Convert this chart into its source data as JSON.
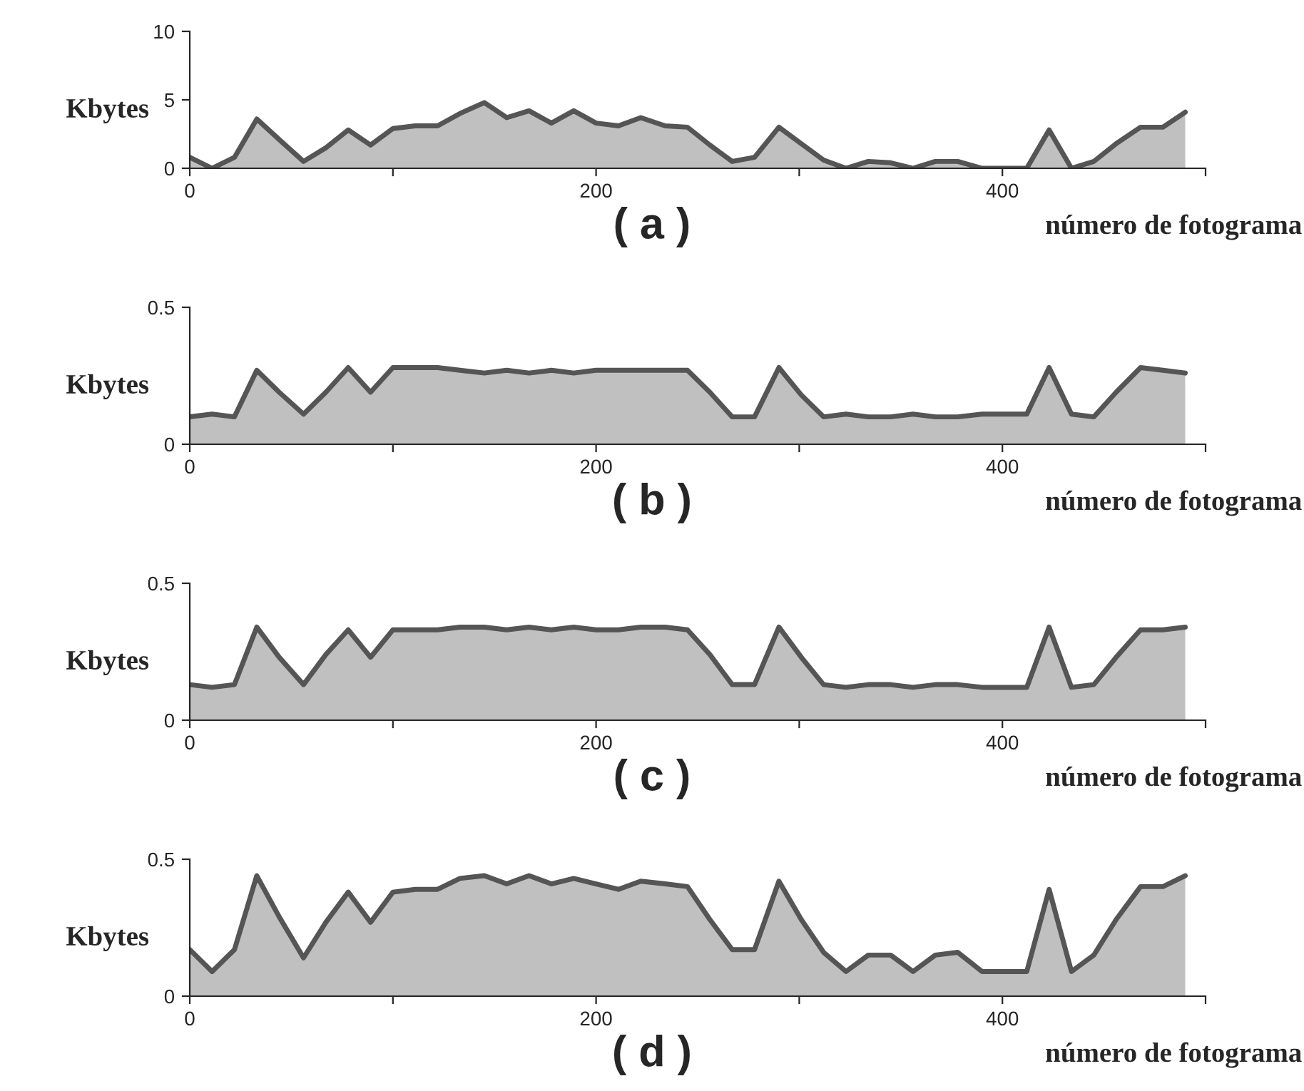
{
  "chart_data": [
    {
      "type": "area",
      "title": "( a )",
      "xlabel": "número de fotograma",
      "ylabel": "Kbytes",
      "x": [
        0,
        11,
        22,
        33,
        44,
        56,
        67,
        78,
        89,
        100,
        111,
        122,
        133,
        145,
        156,
        167,
        178,
        189,
        200,
        211,
        222,
        234,
        245,
        256,
        267,
        278,
        290,
        301,
        312,
        323,
        334,
        345,
        356,
        367,
        378,
        390,
        401,
        412,
        423,
        434,
        445,
        456,
        468,
        479,
        490
      ],
      "series": [
        {
          "color": "#c0c0c0",
          "values": [
            0.8,
            0,
            0.8,
            3.6,
            2.1,
            0.5,
            1.5,
            2.8,
            1.7,
            2.9,
            3.1,
            3.1,
            4.0,
            4.8,
            3.7,
            4.2,
            3.3,
            4.2,
            3.3,
            3.1,
            3.7,
            3.1,
            3.0,
            1.7,
            0.5,
            0.8,
            3.0,
            1.8,
            0.6,
            0,
            0.5,
            0.4,
            0,
            0.5,
            0.5,
            0,
            0,
            0,
            2.8,
            0,
            0.5,
            1.8,
            3.0,
            3.0,
            4.1
          ]
        }
      ],
      "xlim": [
        0,
        500
      ],
      "xticks": [
        0,
        {
          "value": 100,
          "label": null
        },
        200,
        {
          "value": 300,
          "label": null
        },
        400,
        {
          "value": 500,
          "label": null
        }
      ],
      "ylim": [
        0,
        10
      ],
      "yticks": [
        0,
        5,
        10
      ],
      "grid": false,
      "legend": false
    },
    {
      "type": "area",
      "title": "( b )",
      "xlabel": "número de fotograma",
      "ylabel": "Kbytes",
      "x": [
        0,
        11,
        22,
        33,
        44,
        56,
        67,
        78,
        89,
        100,
        111,
        122,
        133,
        145,
        156,
        167,
        178,
        189,
        200,
        211,
        222,
        234,
        245,
        256,
        267,
        278,
        290,
        301,
        312,
        323,
        334,
        345,
        356,
        367,
        378,
        390,
        401,
        412,
        423,
        434,
        445,
        456,
        468,
        479,
        490
      ],
      "series": [
        {
          "color": "#c0c0c0",
          "values": [
            0.1,
            0.11,
            0.1,
            0.27,
            0.19,
            0.11,
            0.19,
            0.28,
            0.19,
            0.28,
            0.28,
            0.28,
            0.27,
            0.26,
            0.27,
            0.26,
            0.27,
            0.26,
            0.27,
            0.27,
            0.27,
            0.27,
            0.27,
            0.19,
            0.1,
            0.1,
            0.28,
            0.18,
            0.1,
            0.11,
            0.1,
            0.1,
            0.11,
            0.1,
            0.1,
            0.11,
            0.11,
            0.11,
            0.28,
            0.11,
            0.1,
            0.19,
            0.28,
            0.27,
            0.26
          ]
        }
      ],
      "xlim": [
        0,
        500
      ],
      "xticks": [
        0,
        {
          "value": 100,
          "label": null
        },
        200,
        {
          "value": 300,
          "label": null
        },
        400,
        {
          "value": 500,
          "label": null
        }
      ],
      "ylim": [
        0,
        0.5
      ],
      "yticks": [
        0,
        0.5
      ],
      "grid": false,
      "legend": false
    },
    {
      "type": "area",
      "title": "( c )",
      "xlabel": "número de fotograma",
      "ylabel": "Kbytes",
      "x": [
        0,
        11,
        22,
        33,
        44,
        56,
        67,
        78,
        89,
        100,
        111,
        122,
        133,
        145,
        156,
        167,
        178,
        189,
        200,
        211,
        222,
        234,
        245,
        256,
        267,
        278,
        290,
        301,
        312,
        323,
        334,
        345,
        356,
        367,
        378,
        390,
        401,
        412,
        423,
        434,
        445,
        456,
        468,
        479,
        490
      ],
      "series": [
        {
          "color": "#c0c0c0",
          "values": [
            0.13,
            0.12,
            0.13,
            0.34,
            0.23,
            0.13,
            0.24,
            0.33,
            0.23,
            0.33,
            0.33,
            0.33,
            0.34,
            0.34,
            0.33,
            0.34,
            0.33,
            0.34,
            0.33,
            0.33,
            0.34,
            0.34,
            0.33,
            0.24,
            0.13,
            0.13,
            0.34,
            0.23,
            0.13,
            0.12,
            0.13,
            0.13,
            0.12,
            0.13,
            0.13,
            0.12,
            0.12,
            0.12,
            0.34,
            0.12,
            0.13,
            0.23,
            0.33,
            0.33,
            0.34
          ]
        }
      ],
      "xlim": [
        0,
        500
      ],
      "xticks": [
        0,
        {
          "value": 100,
          "label": null
        },
        200,
        {
          "value": 300,
          "label": null
        },
        400,
        {
          "value": 500,
          "label": null
        }
      ],
      "ylim": [
        0,
        0.5
      ],
      "yticks": [
        0,
        0.5
      ],
      "grid": false,
      "legend": false
    },
    {
      "type": "area",
      "title": "( d )",
      "xlabel": "número de fotograma",
      "ylabel": "Kbytes",
      "x": [
        0,
        11,
        22,
        33,
        44,
        56,
        67,
        78,
        89,
        100,
        111,
        122,
        133,
        145,
        156,
        167,
        178,
        189,
        200,
        211,
        222,
        234,
        245,
        256,
        267,
        278,
        290,
        301,
        312,
        323,
        334,
        345,
        356,
        367,
        378,
        390,
        401,
        412,
        423,
        434,
        445,
        456,
        468,
        479,
        490
      ],
      "series": [
        {
          "color": "#c0c0c0",
          "values": [
            0.17,
            0.09,
            0.17,
            0.44,
            0.29,
            0.14,
            0.27,
            0.38,
            0.27,
            0.38,
            0.39,
            0.39,
            0.43,
            0.44,
            0.41,
            0.44,
            0.41,
            0.43,
            0.41,
            0.39,
            0.42,
            0.41,
            0.4,
            0.28,
            0.17,
            0.17,
            0.42,
            0.28,
            0.16,
            0.09,
            0.15,
            0.15,
            0.09,
            0.15,
            0.16,
            0.09,
            0.09,
            0.09,
            0.39,
            0.09,
            0.15,
            0.28,
            0.4,
            0.4,
            0.44
          ]
        }
      ],
      "xlim": [
        0,
        500
      ],
      "xticks": [
        0,
        {
          "value": 100,
          "label": null
        },
        200,
        {
          "value": 300,
          "label": null
        },
        400,
        {
          "value": 500,
          "label": null
        }
      ],
      "ylim": [
        0,
        0.5
      ],
      "yticks": [
        0,
        0.5
      ],
      "grid": false,
      "legend": false
    }
  ]
}
